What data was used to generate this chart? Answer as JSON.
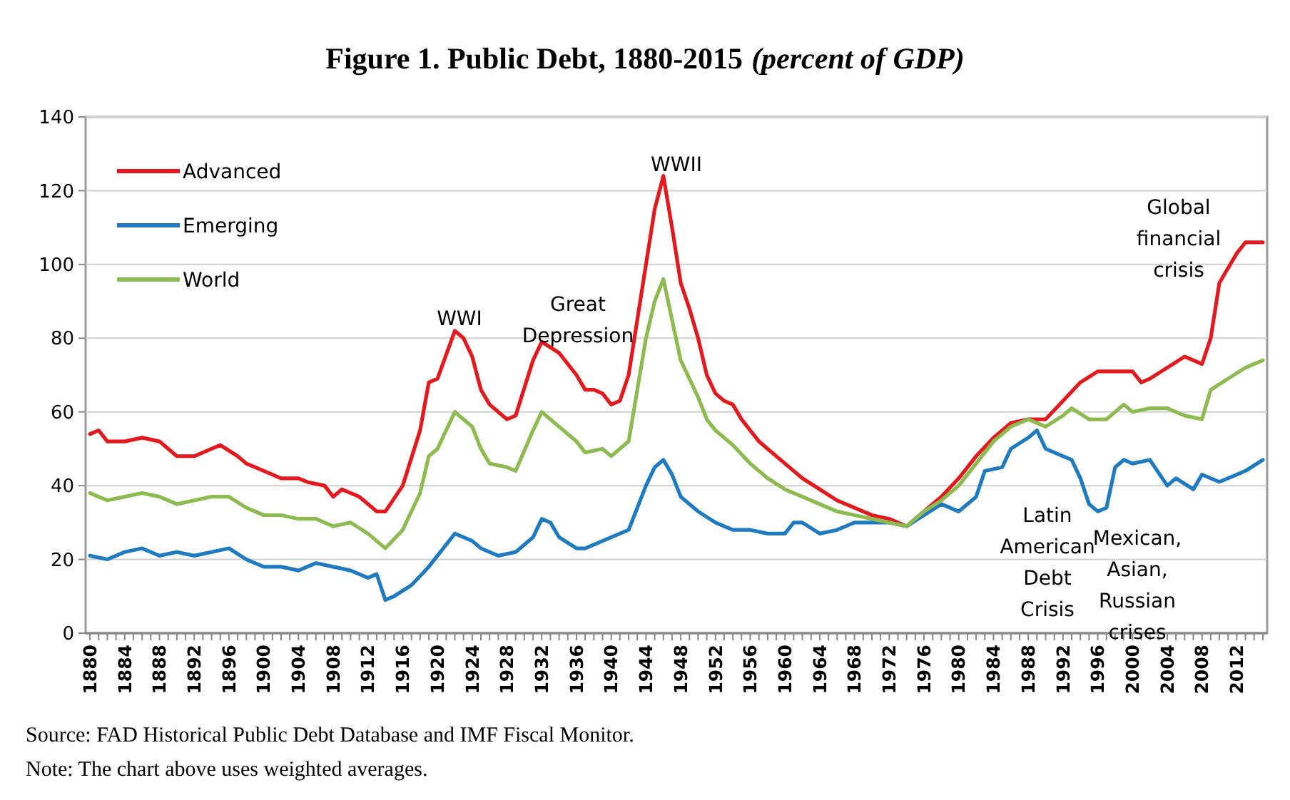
{
  "chart_data": {
    "type": "line",
    "title": "Figure 1. Public Debt, 1880-2015",
    "subtitle": "(percent of GDP)",
    "xlim": [
      1879.5,
      2015.5
    ],
    "xticks": [
      1880,
      1884,
      1888,
      1892,
      1896,
      1900,
      1904,
      1908,
      1912,
      1916,
      1920,
      1924,
      1928,
      1932,
      1936,
      1940,
      1944,
      1948,
      1952,
      1956,
      1960,
      1964,
      1968,
      1972,
      1976,
      1980,
      1984,
      1988,
      1992,
      1996,
      2000,
      2004,
      2008,
      2012
    ],
    "ylim": [
      0,
      140
    ],
    "yticks": [
      0,
      20,
      40,
      60,
      80,
      100,
      120,
      140
    ],
    "grid": "y",
    "legend": "top left",
    "line_style": "solid",
    "marker": "none",
    "series": [
      {
        "name": "Advanced",
        "color": "#e3191e",
        "x": [
          1880,
          1881,
          1882,
          1884,
          1886,
          1888,
          1890,
          1892,
          1894,
          1895,
          1897,
          1898,
          1900,
          1902,
          1904,
          1905,
          1907,
          1908,
          1909,
          1911,
          1913,
          1914,
          1916,
          1918,
          1919,
          1920,
          1922,
          1923,
          1924,
          1925,
          1926,
          1927,
          1928,
          1929,
          1931,
          1932,
          1934,
          1936,
          1937,
          1938,
          1939,
          1940,
          1941,
          1942,
          1944,
          1945,
          1946,
          1947,
          1948,
          1949,
          1950,
          1951,
          1952,
          1953,
          1954,
          1955,
          1956,
          1957,
          1958,
          1960,
          1962,
          1964,
          1966,
          1968,
          1970,
          1972,
          1973,
          1974,
          1976,
          1978,
          1980,
          1982,
          1984,
          1986,
          1988,
          1990,
          1992,
          1994,
          1996,
          1998,
          2000,
          2001,
          2002,
          2004,
          2006,
          2008,
          2009,
          2010,
          2011,
          2012,
          2013,
          2015
        ],
        "values": [
          54,
          55,
          52,
          52,
          53,
          52,
          48,
          48,
          50,
          51,
          48,
          46,
          44,
          42,
          42,
          41,
          40,
          37,
          39,
          37,
          33,
          33,
          40,
          55,
          68,
          69,
          82,
          80,
          75,
          66,
          62,
          60,
          58,
          59,
          74,
          79,
          76,
          70,
          66,
          66,
          65,
          62,
          63,
          70,
          100,
          115,
          124,
          110,
          95,
          88,
          80,
          70,
          65,
          63,
          62,
          58,
          55,
          52,
          50,
          46,
          42,
          39,
          36,
          34,
          32,
          31,
          30,
          29,
          33,
          37,
          42,
          48,
          53,
          57,
          58,
          58,
          63,
          68,
          71,
          71,
          71,
          68,
          69,
          72,
          75,
          73,
          80,
          95,
          99,
          103,
          106,
          106
        ]
      },
      {
        "name": "Emerging",
        "color": "#1f7bc1",
        "x": [
          1880,
          1882,
          1884,
          1886,
          1888,
          1890,
          1892,
          1894,
          1896,
          1898,
          1900,
          1902,
          1904,
          1906,
          1908,
          1910,
          1912,
          1913,
          1914,
          1915,
          1917,
          1919,
          1921,
          1922,
          1924,
          1925,
          1927,
          1929,
          1931,
          1932,
          1933,
          1934,
          1936,
          1937,
          1939,
          1941,
          1942,
          1944,
          1945,
          1946,
          1947,
          1948,
          1950,
          1952,
          1954,
          1956,
          1958,
          1960,
          1961,
          1962,
          1964,
          1966,
          1968,
          1970,
          1972,
          1974,
          1976,
          1978,
          1980,
          1982,
          1983,
          1985,
          1986,
          1988,
          1989,
          1990,
          1992,
          1993,
          1994,
          1995,
          1996,
          1997,
          1998,
          1999,
          2000,
          2002,
          2004,
          2005,
          2007,
          2008,
          2010,
          2012,
          2013,
          2015
        ],
        "values": [
          21,
          20,
          22,
          23,
          21,
          22,
          21,
          22,
          23,
          20,
          18,
          18,
          17,
          19,
          18,
          17,
          15,
          16,
          9,
          10,
          13,
          18,
          24,
          27,
          25,
          23,
          21,
          22,
          26,
          31,
          30,
          26,
          23,
          23,
          25,
          27,
          28,
          40,
          45,
          47,
          43,
          37,
          33,
          30,
          28,
          28,
          27,
          27,
          30,
          30,
          27,
          28,
          30,
          30,
          30,
          29,
          32,
          35,
          33,
          37,
          44,
          45,
          50,
          53,
          55,
          50,
          48,
          47,
          42,
          35,
          33,
          34,
          45,
          47,
          46,
          47,
          40,
          42,
          39,
          43,
          41,
          43,
          44,
          47
        ]
      },
      {
        "name": "World",
        "color": "#8dbb4f",
        "x": [
          1880,
          1882,
          1884,
          1886,
          1888,
          1890,
          1892,
          1894,
          1896,
          1898,
          1900,
          1902,
          1904,
          1906,
          1908,
          1910,
          1912,
          1914,
          1916,
          1918,
          1919,
          1920,
          1922,
          1924,
          1925,
          1926,
          1928,
          1929,
          1931,
          1932,
          1934,
          1936,
          1937,
          1939,
          1940,
          1942,
          1944,
          1945,
          1946,
          1947,
          1948,
          1950,
          1951,
          1952,
          1954,
          1956,
          1958,
          1960,
          1962,
          1964,
          1966,
          1968,
          1970,
          1972,
          1974,
          1976,
          1978,
          1980,
          1982,
          1984,
          1986,
          1988,
          1990,
          1992,
          1993,
          1995,
          1997,
          1999,
          2000,
          2002,
          2004,
          2006,
          2008,
          2009,
          2011,
          2013,
          2015
        ],
        "values": [
          38,
          36,
          37,
          38,
          37,
          35,
          36,
          37,
          37,
          34,
          32,
          32,
          31,
          31,
          29,
          30,
          27,
          23,
          28,
          38,
          48,
          50,
          60,
          56,
          50,
          46,
          45,
          44,
          55,
          60,
          56,
          52,
          49,
          50,
          48,
          52,
          80,
          90,
          96,
          85,
          74,
          64,
          58,
          55,
          51,
          46,
          42,
          39,
          37,
          35,
          33,
          32,
          31,
          30,
          29,
          33,
          36,
          40,
          46,
          52,
          56,
          58,
          56,
          59,
          61,
          58,
          58,
          62,
          60,
          61,
          61,
          59,
          58,
          66,
          69,
          72,
          74
        ]
      }
    ],
    "annotations": [
      "WWI",
      "Great\nDepression",
      "WWII",
      "Global\nfinancial\ncrisis",
      "Latin\nAmerican\nDebt\nCrisis",
      "Mexican,\nAsian,\nRussian\ncrises",
      "Source: FAD Historical Public Debt Database and IMF Fiscal Monitor.",
      "Note: The chart above uses weighted averages."
    ]
  }
}
